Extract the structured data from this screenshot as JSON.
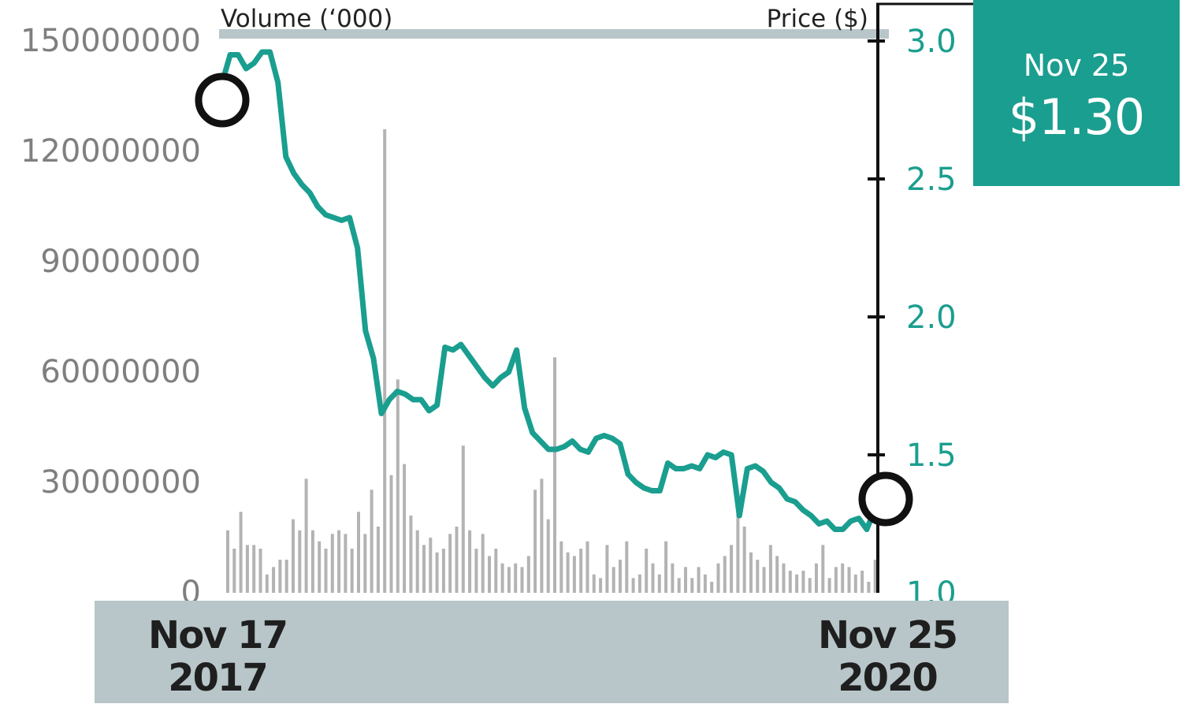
{
  "chart_data": {
    "type": "line",
    "left_axis": {
      "title": "Volume (‘000)",
      "ticks": [
        "150000000",
        "120000000",
        "90000000",
        "60000000",
        "30000000",
        "0"
      ],
      "range": [
        0,
        150000000
      ]
    },
    "right_axis": {
      "title": "Price ($)",
      "ticks": [
        "3.0",
        "2.5",
        "2.0",
        "1.5",
        "1.0"
      ],
      "range": [
        1.0,
        3.0
      ]
    },
    "x_labels": {
      "start": {
        "month_day": "Nov 17",
        "year": "2017"
      },
      "end": {
        "month_day": "Nov 25",
        "year": "2020"
      }
    },
    "callout": {
      "date": "Nov 25",
      "price": "$1.30"
    },
    "series": [
      {
        "type": "line",
        "values": [
          2.85,
          2.95,
          2.95,
          2.9,
          2.92,
          2.96,
          2.96,
          2.85,
          2.58,
          2.52,
          2.48,
          2.45,
          2.4,
          2.37,
          2.36,
          2.35,
          2.36,
          2.25,
          1.95,
          1.85,
          1.65,
          1.7,
          1.73,
          1.72,
          1.7,
          1.7,
          1.66,
          1.68,
          1.89,
          1.88,
          1.9,
          1.86,
          1.82,
          1.78,
          1.75,
          1.78,
          1.8,
          1.88,
          1.67,
          1.58,
          1.55,
          1.52,
          1.52,
          1.53,
          1.55,
          1.52,
          1.51,
          1.56,
          1.57,
          1.56,
          1.54,
          1.43,
          1.4,
          1.38,
          1.37,
          1.37,
          1.47,
          1.45,
          1.45,
          1.46,
          1.45,
          1.5,
          1.49,
          1.51,
          1.5,
          1.28,
          1.45,
          1.46,
          1.44,
          1.4,
          1.38,
          1.34,
          1.33,
          1.3,
          1.28,
          1.25,
          1.26,
          1.23,
          1.23,
          1.26,
          1.27,
          1.23,
          1.3
        ],
        "color": "#1a9e8f"
      },
      {
        "type": "bar",
        "values": [
          17000000,
          12000000,
          22000000,
          13000000,
          13000000,
          12000000,
          5000000,
          7000000,
          9000000,
          9000000,
          20000000,
          17000000,
          31000000,
          17000000,
          14000000,
          12000000,
          16000000,
          17000000,
          16000000,
          12000000,
          22000000,
          16000000,
          28000000,
          18000000,
          126000000,
          32000000,
          58000000,
          35000000,
          21000000,
          17000000,
          13000000,
          15000000,
          11000000,
          12000000,
          16000000,
          18000000,
          40000000,
          17000000,
          12000000,
          16000000,
          10000000,
          12000000,
          8000000,
          7000000,
          8000000,
          7000000,
          10000000,
          28000000,
          31000000,
          20000000,
          64000000,
          14000000,
          11000000,
          10000000,
          12000000,
          14000000,
          5000000,
          4000000,
          13000000,
          7000000,
          9000000,
          14000000,
          4000000,
          5000000,
          12000000,
          8000000,
          5000000,
          14000000,
          8000000,
          4000000,
          7000000,
          4000000,
          7000000,
          5000000,
          3000000,
          8000000,
          10000000,
          13000000,
          22000000,
          18000000,
          11000000,
          9000000,
          7000000,
          13000000,
          10000000,
          8000000,
          6000000,
          5000000,
          6000000,
          4000000,
          8000000,
          13000000,
          4000000,
          7000000,
          8000000,
          7000000,
          5000000,
          6000000,
          3000000,
          9000000
        ],
        "color": "#b3b3b3"
      }
    ],
    "grid": false
  },
  "colors": {
    "price_line": "#1a9e8f",
    "volume_bars": "#b3b3b3",
    "band": "#b8c6c9",
    "callout_bg": "#1a9e8f"
  }
}
